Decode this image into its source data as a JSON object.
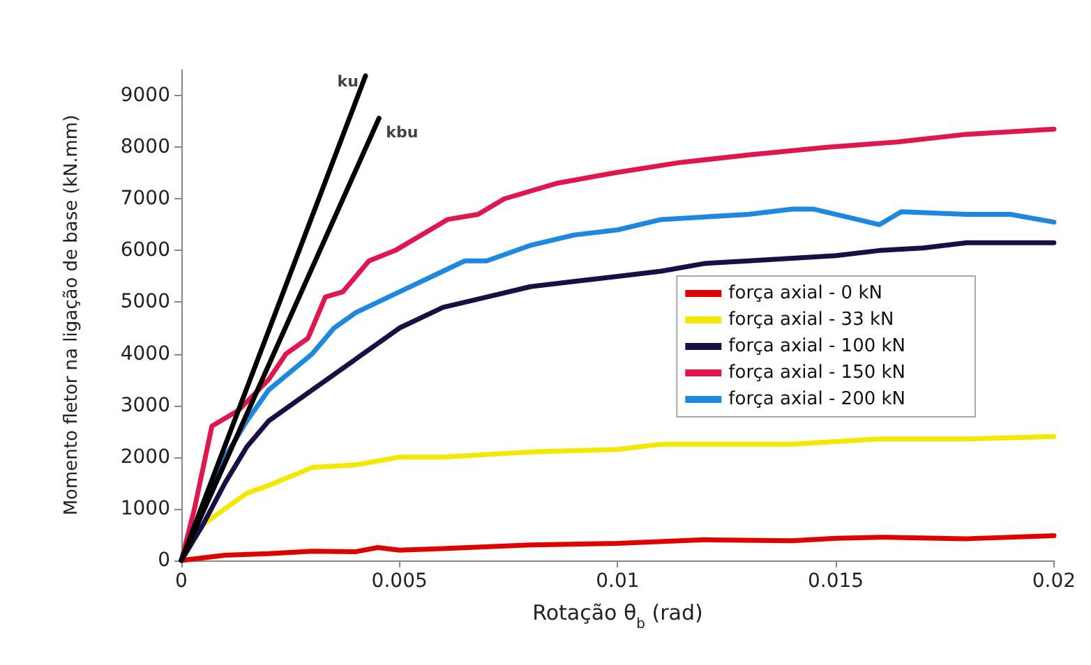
{
  "chart_data": {
    "type": "line",
    "xlabel": "Rotação θ$_{b}$ (rad)",
    "ylabel": "Momento fletor na ligação de base (kN.mm)",
    "xlim": [
      0,
      0.02
    ],
    "xticks": [
      0,
      0.005,
      0.01,
      0.015,
      0.02
    ],
    "ylim": [
      0,
      9500
    ],
    "yticks": [
      0,
      1000,
      2000,
      3000,
      4000,
      5000,
      6000,
      7000,
      8000,
      9000
    ],
    "grid": false,
    "legend": "right",
    "marker": "none",
    "line_style": "solid",
    "annotations": [
      {
        "text": "ku",
        "x": 0.00422,
        "y": 9380
      },
      {
        "text": "kbu",
        "x": 0.00453,
        "y": 8560
      }
    ],
    "series": [
      {
        "name": "força axial - 0 kN",
        "color": "#e00000",
        "x": [
          0,
          0.001,
          0.002,
          0.003,
          0.004,
          0.0045,
          0.005,
          0.006,
          0.008,
          0.01,
          0.012,
          0.014,
          0.015,
          0.016,
          0.018,
          0.02
        ],
        "values": [
          0,
          100,
          130,
          180,
          170,
          250,
          200,
          230,
          300,
          330,
          400,
          380,
          430,
          450,
          420,
          480
        ]
      },
      {
        "name": "força axial - 33 kN",
        "color": "#f5e800",
        "x": [
          0,
          0.0005,
          0.001,
          0.0015,
          0.002,
          0.003,
          0.004,
          0.005,
          0.006,
          0.008,
          0.01,
          0.011,
          0.012,
          0.014,
          0.015,
          0.016,
          0.018,
          0.02
        ],
        "values": [
          0,
          700,
          1000,
          1300,
          1450,
          1800,
          1850,
          2000,
          2000,
          2100,
          2150,
          2250,
          2250,
          2250,
          2300,
          2350,
          2350,
          2400
        ]
      },
      {
        "name": "força axial - 100 kN",
        "color": "#1a0f45",
        "x": [
          0,
          0.0005,
          0.001,
          0.0015,
          0.002,
          0.003,
          0.004,
          0.005,
          0.006,
          0.007,
          0.008,
          0.009,
          0.01,
          0.011,
          0.012,
          0.013,
          0.014,
          0.015,
          0.016,
          0.017,
          0.018,
          0.02
        ],
        "values": [
          0,
          700,
          1500,
          2200,
          2700,
          3300,
          3900,
          4500,
          4900,
          5100,
          5300,
          5400,
          5500,
          5600,
          5750,
          5800,
          5850,
          5900,
          6000,
          6050,
          6150,
          6150
        ]
      },
      {
        "name": "força axial - 150 kN",
        "color": "#e0174f",
        "x": [
          0,
          0.0003,
          0.0007,
          0.0013,
          0.002,
          0.0024,
          0.0029,
          0.0033,
          0.0037,
          0.004,
          0.0043,
          0.0049,
          0.0055,
          0.0061,
          0.0068,
          0.0074,
          0.0086,
          0.0099,
          0.0114,
          0.013,
          0.0148,
          0.0164,
          0.018,
          0.02
        ],
        "values": [
          0,
          1000,
          2600,
          2900,
          3500,
          4000,
          4300,
          5100,
          5200,
          5500,
          5800,
          6000,
          6300,
          6600,
          6700,
          7000,
          7300,
          7500,
          7700,
          7850,
          8000,
          8100,
          8250,
          8350
        ]
      },
      {
        "name": "força axial - 200 kN",
        "color": "#1e88e0",
        "x": [
          0,
          0.0005,
          0.001,
          0.0015,
          0.002,
          0.003,
          0.0035,
          0.004,
          0.005,
          0.006,
          0.0065,
          0.007,
          0.008,
          0.009,
          0.01,
          0.011,
          0.012,
          0.013,
          0.014,
          0.0145,
          0.0155,
          0.016,
          0.0165,
          0.018,
          0.019,
          0.02
        ],
        "values": [
          0,
          1000,
          2000,
          2700,
          3300,
          4000,
          4500,
          4800,
          5200,
          5600,
          5800,
          5800,
          6100,
          6300,
          6400,
          6600,
          6650,
          6700,
          6800,
          6800,
          6600,
          6500,
          6750,
          6700,
          6700,
          6550
        ]
      },
      {
        "color": "#000000",
        "x": [
          0,
          0.00422
        ],
        "values": [
          0,
          9380
        ]
      },
      {
        "color": "#000000",
        "x": [
          0,
          0.00453
        ],
        "values": [
          0,
          8560
        ]
      }
    ]
  }
}
